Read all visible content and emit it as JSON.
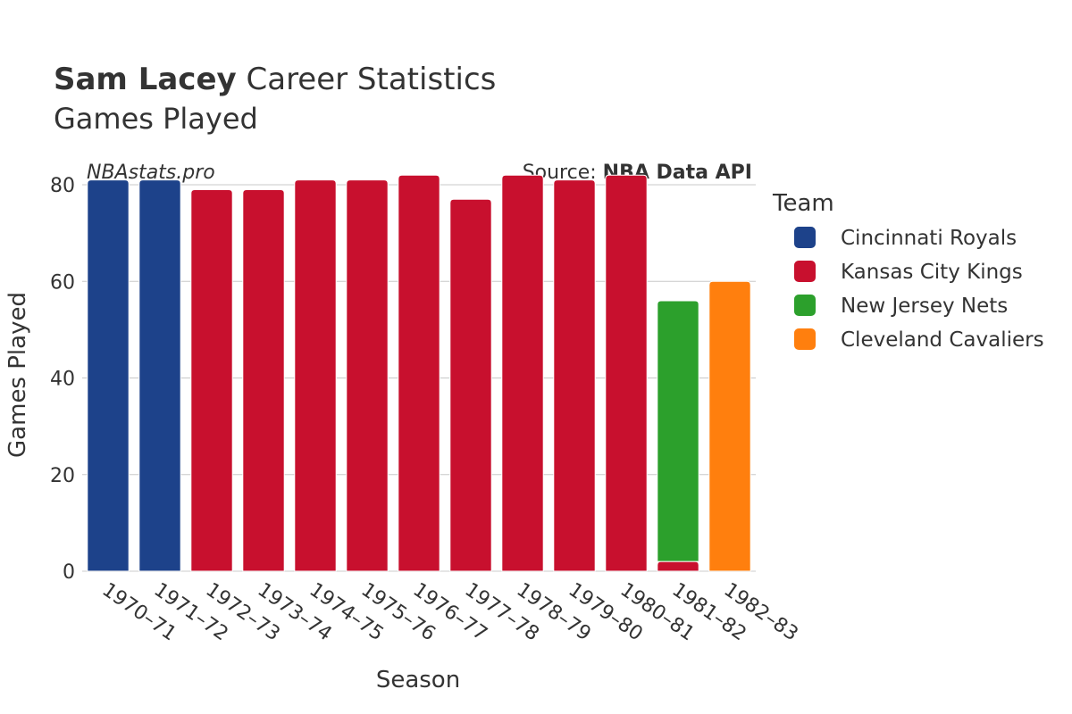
{
  "header": {
    "player_name": "Sam Lacey",
    "title_rest": " Career Statistics",
    "subtitle": "Games Played"
  },
  "watermark": "NBAstats.pro",
  "source": {
    "prefix": "Source: ",
    "name": "NBA Data API"
  },
  "colors": {
    "Cincinnati Royals": "#1d428a",
    "Kansas City Kings": "#c8102e",
    "New Jersey Nets": "#2ca02c",
    "Cleveland Cavaliers": "#ff7f0e",
    "grid": "#c8c8c8",
    "axis_text": "#333333"
  },
  "chart_data": {
    "type": "bar",
    "stacked": true,
    "title": "Sam Lacey Career Statistics",
    "subtitle": "Games Played",
    "xlabel": "Season",
    "ylabel": "Games Played",
    "ylim": [
      0,
      85
    ],
    "yticks": [
      0,
      20,
      40,
      60,
      80
    ],
    "grid": true,
    "legend_title": "Team",
    "legend_position": "right",
    "categories": [
      "1970–71",
      "1971–72",
      "1972–73",
      "1973–74",
      "1974–75",
      "1975–76",
      "1976–77",
      "1977–78",
      "1978–79",
      "1979–80",
      "1980–81",
      "1981–82",
      "1982–83"
    ],
    "series": [
      {
        "name": "Cincinnati Royals",
        "values": [
          81,
          81,
          0,
          0,
          0,
          0,
          0,
          0,
          0,
          0,
          0,
          0,
          0
        ]
      },
      {
        "name": "Kansas City Kings",
        "values": [
          0,
          0,
          79,
          79,
          81,
          81,
          82,
          77,
          82,
          81,
          82,
          2,
          0
        ]
      },
      {
        "name": "New Jersey Nets",
        "values": [
          0,
          0,
          0,
          0,
          0,
          0,
          0,
          0,
          0,
          0,
          0,
          54,
          0
        ]
      },
      {
        "name": "Cleveland Cavaliers",
        "values": [
          0,
          0,
          0,
          0,
          0,
          0,
          0,
          0,
          0,
          0,
          0,
          0,
          60
        ]
      }
    ]
  }
}
